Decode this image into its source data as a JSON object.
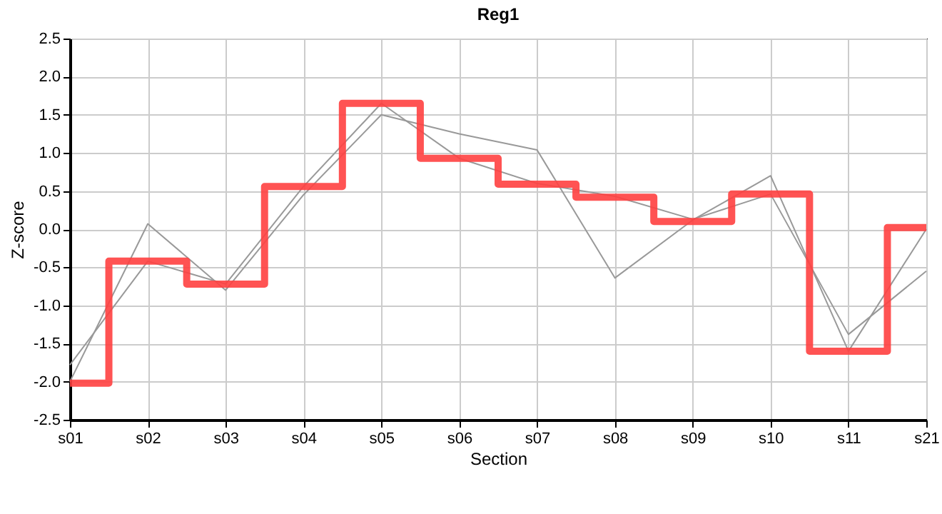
{
  "chart_data": {
    "type": "line",
    "title": "Reg1",
    "xlabel": "Section",
    "ylabel": "Z-score",
    "categories": [
      "s01",
      "s02",
      "s03",
      "s04",
      "s05",
      "s06",
      "s07",
      "s08",
      "s09",
      "s10",
      "s11",
      "s21"
    ],
    "ylim": [
      -2.5,
      2.5
    ],
    "yticks": [
      {
        "value": -2.5,
        "label": "-2.5"
      },
      {
        "value": -2,
        "label": "-2.0"
      },
      {
        "value": -1.5,
        "label": "-1.5"
      },
      {
        "value": -1,
        "label": "-1.0"
      },
      {
        "value": -0.5,
        "label": "-0.5"
      },
      {
        "value": 0,
        "label": "0.0"
      },
      {
        "value": 0.5,
        "label": "0.5"
      },
      {
        "value": 1,
        "label": "1.0"
      },
      {
        "value": 1.5,
        "label": "1.5"
      },
      {
        "value": 2,
        "label": "2.0"
      },
      {
        "value": 2.5,
        "label": "2.5"
      }
    ],
    "grid": true,
    "series": [
      {
        "type": "line",
        "color": "#999999",
        "values": [
          -2.0,
          0.07,
          -0.8,
          0.45,
          1.5,
          1.25,
          1.04,
          -0.64,
          0.12,
          0.7,
          -1.6,
          0.0
        ]
      },
      {
        "type": "line",
        "color": "#999999",
        "values": [
          -1.78,
          -0.42,
          -0.72,
          0.56,
          1.65,
          0.93,
          0.6,
          0.43,
          0.13,
          0.46,
          -1.38,
          -0.55
        ]
      },
      {
        "type": "step",
        "color": "#ff4040",
        "values": [
          -2.02,
          -0.42,
          -0.72,
          0.56,
          1.65,
          0.93,
          0.59,
          0.42,
          0.1,
          0.46,
          -1.6,
          0.02
        ]
      }
    ]
  }
}
